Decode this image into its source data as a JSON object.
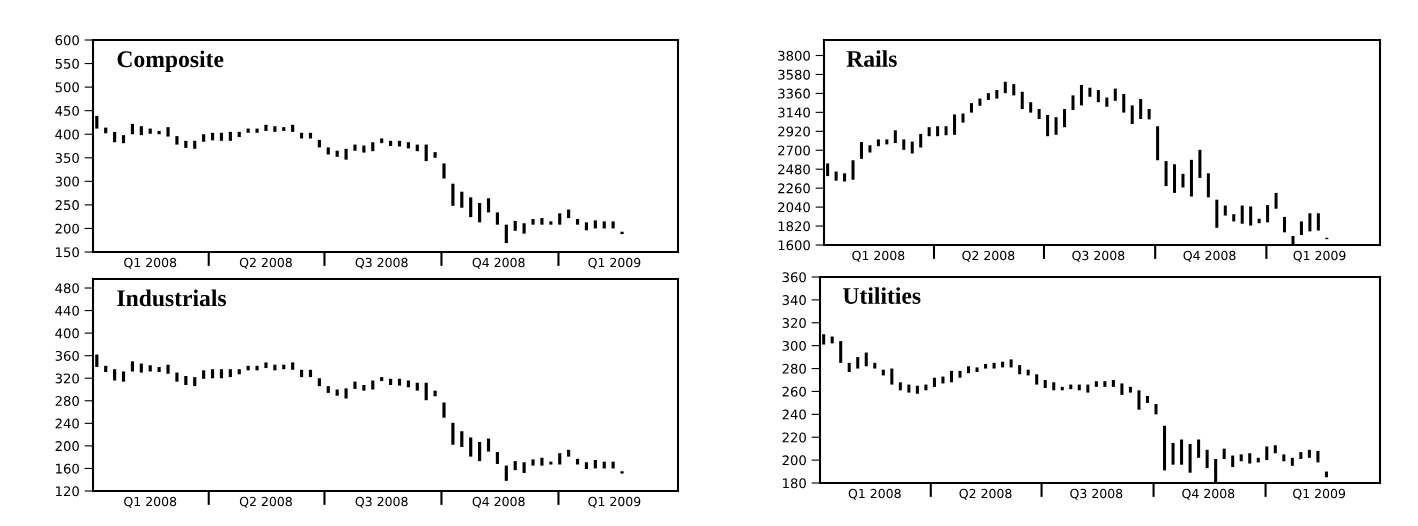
{
  "chart_data": [
    {
      "type": "bar",
      "title": "Composite",
      "color": "#000000",
      "x": [
        "2008-01-04",
        "2008-01-11",
        "2008-01-18",
        "2008-01-25",
        "2008-02-01",
        "2008-02-08",
        "2008-02-15",
        "2008-02-22",
        "2008-02-29",
        "2008-03-07",
        "2008-03-14",
        "2008-03-21",
        "2008-03-28",
        "2008-04-04",
        "2008-04-11",
        "2008-04-18",
        "2008-04-25",
        "2008-05-02",
        "2008-05-09",
        "2008-05-16",
        "2008-05-23",
        "2008-05-30",
        "2008-06-06",
        "2008-06-13",
        "2008-06-20",
        "2008-06-27",
        "2008-07-04",
        "2008-07-11",
        "2008-07-18",
        "2008-07-25",
        "2008-08-01",
        "2008-08-08",
        "2008-08-15",
        "2008-08-22",
        "2008-08-29",
        "2008-09-05",
        "2008-09-12",
        "2008-09-19",
        "2008-09-26",
        "2008-10-03",
        "2008-10-10",
        "2008-10-17",
        "2008-10-24",
        "2008-10-31",
        "2008-11-07",
        "2008-11-14",
        "2008-11-21",
        "2008-11-28",
        "2008-12-05",
        "2008-12-12",
        "2008-12-19",
        "2008-12-26",
        "2009-01-02",
        "2009-01-09",
        "2009-01-16",
        "2009-01-23",
        "2009-01-30",
        "2009-02-06",
        "2009-02-13",
        "2009-02-20"
      ],
      "base": [
        412,
        402,
        383,
        381,
        400,
        398,
        401,
        400,
        395,
        378,
        371,
        369,
        384,
        387,
        386,
        386,
        394,
        403,
        403,
        407,
        405,
        407,
        405,
        391,
        391,
        372,
        357,
        352,
        346,
        365,
        361,
        364,
        381,
        375,
        374,
        370,
        364,
        343,
        350,
        306,
        248,
        244,
        224,
        213,
        234,
        208,
        169,
        195,
        189,
        208,
        208,
        208,
        208,
        222,
        208,
        196,
        200,
        200,
        200,
        188
      ],
      "values": [
        27,
        12,
        22,
        17,
        22,
        19,
        11,
        7,
        20,
        18,
        15,
        17,
        16,
        16,
        17,
        19,
        11,
        9,
        9,
        13,
        12,
        8,
        15,
        12,
        12,
        16,
        15,
        13,
        23,
        13,
        15,
        19,
        10,
        11,
        12,
        13,
        14,
        35,
        12,
        32,
        47,
        34,
        42,
        41,
        30,
        26,
        39,
        21,
        22,
        12,
        14,
        7,
        24,
        18,
        12,
        17,
        17,
        15,
        15,
        5
      ],
      "xlim": [
        "2008-01-01",
        "2009-04-05"
      ],
      "xticks": [
        {
          "value": "2008-02-15",
          "label": "Q1 2008"
        },
        {
          "value": "2008-05-16",
          "label": "Q2 2008"
        },
        {
          "value": "2008-08-15",
          "label": "Q3 2008"
        },
        {
          "value": "2008-11-15",
          "label": "Q4 2008"
        },
        {
          "value": "2009-02-14",
          "label": "Q1 2009"
        },
        {
          "value": "2008-04-01",
          "label": null
        },
        {
          "value": "2008-07-01",
          "label": null
        },
        {
          "value": "2008-10-01",
          "label": null
        },
        {
          "value": "2009-01-01",
          "label": null
        }
      ],
      "ylim": [
        150,
        600
      ],
      "yticks": [
        150,
        200,
        250,
        300,
        350,
        400,
        450,
        500,
        550,
        600
      ]
    },
    {
      "type": "bar",
      "title": "Rails",
      "color": "#000000",
      "x": [
        "2008-01-04",
        "2008-01-11",
        "2008-01-18",
        "2008-01-25",
        "2008-02-01",
        "2008-02-08",
        "2008-02-15",
        "2008-02-22",
        "2008-02-29",
        "2008-03-07",
        "2008-03-14",
        "2008-03-21",
        "2008-03-28",
        "2008-04-04",
        "2008-04-11",
        "2008-04-18",
        "2008-04-25",
        "2008-05-02",
        "2008-05-09",
        "2008-05-16",
        "2008-05-23",
        "2008-05-30",
        "2008-06-06",
        "2008-06-13",
        "2008-06-20",
        "2008-06-27",
        "2008-07-04",
        "2008-07-11",
        "2008-07-18",
        "2008-07-25",
        "2008-08-01",
        "2008-08-08",
        "2008-08-15",
        "2008-08-22",
        "2008-08-29",
        "2008-09-05",
        "2008-09-12",
        "2008-09-19",
        "2008-09-26",
        "2008-10-03",
        "2008-10-10",
        "2008-10-17",
        "2008-10-24",
        "2008-10-31",
        "2008-11-07",
        "2008-11-14",
        "2008-11-21",
        "2008-11-28",
        "2008-12-05",
        "2008-12-12",
        "2008-12-19",
        "2008-12-26",
        "2009-01-02",
        "2009-01-09",
        "2009-01-16",
        "2009-01-23",
        "2009-01-30",
        "2009-02-06",
        "2009-02-13",
        "2009-02-20"
      ],
      "base": [
        2400,
        2347,
        2337,
        2358,
        2600,
        2674,
        2747,
        2768,
        2784,
        2705,
        2663,
        2732,
        2863,
        2863,
        2874,
        2879,
        3021,
        3137,
        3216,
        3284,
        3300,
        3363,
        3337,
        3179,
        3137,
        3063,
        2863,
        2879,
        2968,
        3168,
        3221,
        3321,
        3258,
        3205,
        3274,
        3137,
        3005,
        3063,
        3058,
        2584,
        2284,
        2205,
        2268,
        2163,
        2379,
        2153,
        1800,
        1942,
        1874,
        1847,
        1826,
        1853,
        1863,
        2021,
        1747,
        1600,
        1716,
        1758,
        1768,
        1668
      ],
      "values": [
        147,
        106,
        95,
        226,
        195,
        84,
        79,
        58,
        148,
        121,
        137,
        157,
        105,
        116,
        105,
        237,
        105,
        110,
        84,
        79,
        100,
        132,
        131,
        200,
        121,
        116,
        247,
        205,
        211,
        169,
        237,
        105,
        142,
        106,
        142,
        216,
        216,
        232,
        121,
        395,
        290,
        332,
        158,
        426,
        326,
        279,
        326,
        116,
        84,
        211,
        221,
        52,
        200,
        184,
        179,
        105,
        158,
        210,
        200,
        16
      ],
      "xlim": [
        "2008-01-01",
        "2009-04-05"
      ],
      "xticks": [
        {
          "value": "2008-02-15",
          "label": "Q1 2008"
        },
        {
          "value": "2008-05-16",
          "label": "Q2 2008"
        },
        {
          "value": "2008-08-15",
          "label": "Q3 2008"
        },
        {
          "value": "2008-11-15",
          "label": "Q4 2008"
        },
        {
          "value": "2009-02-14",
          "label": "Q1 2009"
        },
        {
          "value": "2008-04-01",
          "label": null
        },
        {
          "value": "2008-07-01",
          "label": null
        },
        {
          "value": "2008-10-01",
          "label": null
        },
        {
          "value": "2009-01-01",
          "label": null
        }
      ],
      "ylim": [
        1600,
        3980
      ],
      "yticks": [
        1600,
        1820,
        2040,
        2260,
        2480,
        2700,
        2920,
        3140,
        3360,
        3580,
        3800
      ]
    },
    {
      "type": "bar",
      "title": "Industrials",
      "color": "#000000",
      "x": [
        "2008-01-04",
        "2008-01-11",
        "2008-01-18",
        "2008-01-25",
        "2008-02-01",
        "2008-02-08",
        "2008-02-15",
        "2008-02-22",
        "2008-02-29",
        "2008-03-07",
        "2008-03-14",
        "2008-03-21",
        "2008-03-28",
        "2008-04-04",
        "2008-04-11",
        "2008-04-18",
        "2008-04-25",
        "2008-05-02",
        "2008-05-09",
        "2008-05-16",
        "2008-05-23",
        "2008-05-30",
        "2008-06-06",
        "2008-06-13",
        "2008-06-20",
        "2008-06-27",
        "2008-07-04",
        "2008-07-11",
        "2008-07-18",
        "2008-07-25",
        "2008-08-01",
        "2008-08-08",
        "2008-08-15",
        "2008-08-22",
        "2008-08-29",
        "2008-09-05",
        "2008-09-12",
        "2008-09-19",
        "2008-09-26",
        "2008-10-03",
        "2008-10-10",
        "2008-10-17",
        "2008-10-24",
        "2008-10-31",
        "2008-11-07",
        "2008-11-14",
        "2008-11-21",
        "2008-11-28",
        "2008-12-05",
        "2008-12-12",
        "2008-12-19",
        "2008-12-26",
        "2009-01-02",
        "2009-01-09",
        "2009-01-16",
        "2009-01-23",
        "2009-01-30",
        "2009-02-06",
        "2009-02-13",
        "2009-02-20"
      ],
      "base": [
        340,
        331,
        316,
        314,
        332,
        330,
        332,
        331,
        328,
        314,
        308,
        306,
        319,
        320,
        320,
        322,
        327,
        334,
        334,
        338,
        334,
        336,
        335,
        322,
        322,
        306,
        294,
        289,
        284,
        301,
        298,
        300,
        315,
        308,
        307,
        304,
        298,
        281,
        288,
        250,
        202,
        198,
        181,
        173,
        190,
        168,
        138,
        157,
        152,
        165,
        165,
        167,
        167,
        181,
        167,
        159,
        160,
        160,
        160,
        151
      ],
      "values": [
        22,
        11,
        20,
        18,
        18,
        16,
        11,
        9,
        16,
        16,
        16,
        16,
        15,
        16,
        16,
        14,
        9,
        8,
        8,
        10,
        10,
        8,
        13,
        13,
        13,
        14,
        12,
        11,
        18,
        13,
        10,
        16,
        7,
        11,
        12,
        12,
        14,
        31,
        10,
        27,
        39,
        28,
        34,
        34,
        23,
        21,
        27,
        16,
        19,
        11,
        14,
        5,
        20,
        12,
        10,
        12,
        15,
        12,
        12,
        4
      ],
      "xlim": [
        "2008-01-01",
        "2009-04-05"
      ],
      "xticks": [
        {
          "value": "2008-02-15",
          "label": "Q1 2008"
        },
        {
          "value": "2008-05-16",
          "label": "Q2 2008"
        },
        {
          "value": "2008-08-15",
          "label": "Q3 2008"
        },
        {
          "value": "2008-11-15",
          "label": "Q4 2008"
        },
        {
          "value": "2009-02-14",
          "label": "Q1 2009"
        },
        {
          "value": "2008-04-01",
          "label": null
        },
        {
          "value": "2008-07-01",
          "label": null
        },
        {
          "value": "2008-10-01",
          "label": null
        },
        {
          "value": "2009-01-01",
          "label": null
        }
      ],
      "ylim": [
        120,
        496
      ],
      "yticks": [
        120,
        160,
        200,
        240,
        280,
        320,
        360,
        400,
        440,
        480
      ]
    },
    {
      "type": "bar",
      "title": "Utilities",
      "color": "#000000",
      "x": [
        "2008-01-04",
        "2008-01-11",
        "2008-01-18",
        "2008-01-25",
        "2008-02-01",
        "2008-02-08",
        "2008-02-15",
        "2008-02-22",
        "2008-02-29",
        "2008-03-07",
        "2008-03-14",
        "2008-03-21",
        "2008-03-28",
        "2008-04-04",
        "2008-04-11",
        "2008-04-18",
        "2008-04-25",
        "2008-05-02",
        "2008-05-09",
        "2008-05-16",
        "2008-05-23",
        "2008-05-30",
        "2008-06-06",
        "2008-06-13",
        "2008-06-20",
        "2008-06-27",
        "2008-07-04",
        "2008-07-11",
        "2008-07-18",
        "2008-07-25",
        "2008-08-01",
        "2008-08-08",
        "2008-08-15",
        "2008-08-22",
        "2008-08-29",
        "2008-09-05",
        "2008-09-12",
        "2008-09-19",
        "2008-09-26",
        "2008-10-03",
        "2008-10-10",
        "2008-10-17",
        "2008-10-24",
        "2008-10-31",
        "2008-11-07",
        "2008-11-14",
        "2008-11-21",
        "2008-11-28",
        "2008-12-05",
        "2008-12-12",
        "2008-12-19",
        "2008-12-26",
        "2009-01-02",
        "2009-01-09",
        "2009-01-16",
        "2009-01-23",
        "2009-01-30",
        "2009-02-06",
        "2009-02-13",
        "2009-02-20"
      ],
      "base": [
        301,
        302,
        285,
        277,
        280,
        282,
        280,
        274,
        266,
        261,
        259,
        258,
        261,
        264,
        267,
        268,
        272,
        276,
        277,
        280,
        280,
        281,
        281,
        275,
        274,
        266,
        263,
        261,
        261,
        262,
        261,
        259,
        264,
        264,
        264,
        257,
        259,
        244,
        250,
        240,
        191,
        196,
        196,
        189,
        202,
        193,
        180,
        201,
        194,
        199,
        197,
        198,
        200,
        206,
        199,
        195,
        201,
        202,
        198,
        185
      ],
      "values": [
        9,
        6,
        19,
        8,
        10,
        12,
        5,
        5,
        14,
        7,
        7,
        7,
        5,
        8,
        6,
        10,
        6,
        6,
        4,
        4,
        5,
        5,
        7,
        8,
        5,
        9,
        7,
        7,
        3,
        4,
        5,
        7,
        5,
        5,
        6,
        10,
        5,
        17,
        6,
        9,
        39,
        19,
        22,
        25,
        16,
        16,
        21,
        9,
        10,
        6,
        9,
        4,
        12,
        7,
        6,
        7,
        6,
        7,
        10,
        5
      ],
      "xlim": [
        "2008-01-01",
        "2009-04-05"
      ],
      "xticks": [
        {
          "value": "2008-02-15",
          "label": "Q1 2008"
        },
        {
          "value": "2008-05-16",
          "label": "Q2 2008"
        },
        {
          "value": "2008-08-15",
          "label": "Q3 2008"
        },
        {
          "value": "2008-11-15",
          "label": "Q4 2008"
        },
        {
          "value": "2009-02-14",
          "label": "Q1 2009"
        },
        {
          "value": "2008-04-01",
          "label": null
        },
        {
          "value": "2008-07-01",
          "label": null
        },
        {
          "value": "2008-10-01",
          "label": null
        },
        {
          "value": "2009-01-01",
          "label": null
        }
      ],
      "ylim": [
        180,
        360
      ],
      "yticks": [
        180,
        200,
        220,
        240,
        260,
        280,
        300,
        320,
        340,
        360
      ]
    }
  ]
}
